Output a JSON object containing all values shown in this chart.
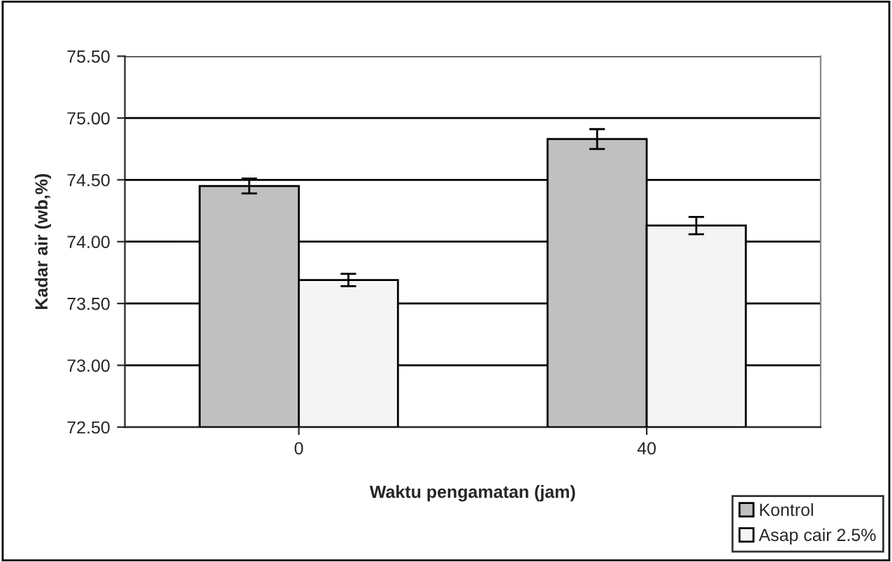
{
  "chart_data": {
    "type": "bar",
    "xlabel": "Waktu pengamatan (jam)",
    "ylabel": "Kadar air (wb,%)",
    "categories": [
      "0",
      "40"
    ],
    "series": [
      {
        "name": "Kontrol",
        "color": "#c0c0c0",
        "values": [
          74.45,
          74.83
        ],
        "errors": [
          0.06,
          0.08
        ]
      },
      {
        "name": "Asap cair 2.5%",
        "color": "#f4f4f4",
        "values": [
          73.69,
          74.13
        ],
        "errors": [
          0.05,
          0.07
        ]
      }
    ],
    "ylim": [
      72.5,
      75.5
    ],
    "yticks": [
      {
        "value": 72.5,
        "label": "72.50"
      },
      {
        "value": 73.0,
        "label": "73.00"
      },
      {
        "value": 73.5,
        "label": "73.50"
      },
      {
        "value": 74.0,
        "label": "74.00"
      },
      {
        "value": 74.5,
        "label": "74.50"
      },
      {
        "value": 75.0,
        "label": "75.00"
      },
      {
        "value": 75.5,
        "label": "75.50"
      }
    ],
    "grid": "y",
    "legend": "bottom right"
  }
}
